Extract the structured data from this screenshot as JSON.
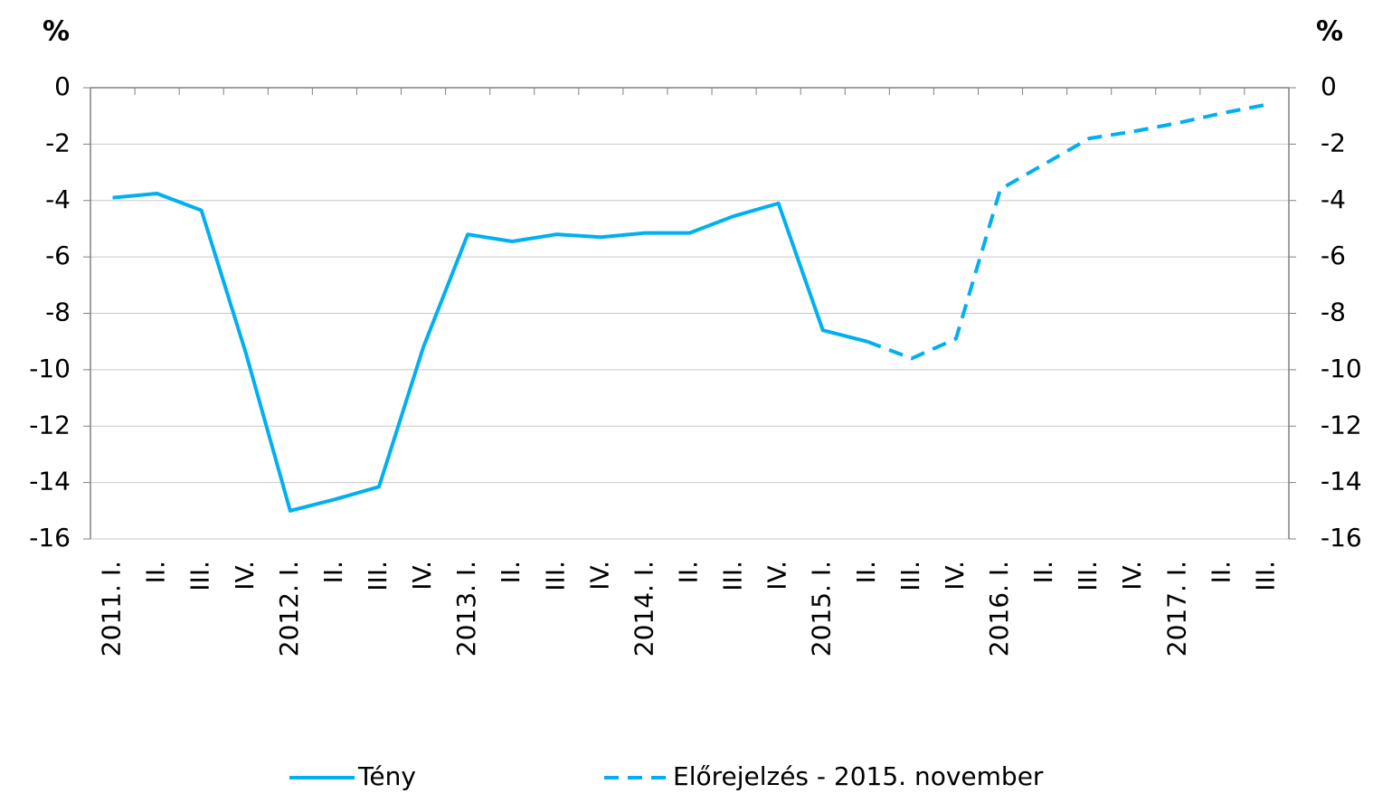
{
  "chart_data": {
    "type": "line",
    "y_label": "%",
    "y2_label": "%",
    "categories": [
      "2011. I.",
      "II.",
      "III.",
      "IV.",
      "2012. I.",
      "II.",
      "III.",
      "IV.",
      "2013. I.",
      "II.",
      "III.",
      "IV.",
      "2014. I.",
      "II.",
      "III.",
      "IV.",
      "2015. I.",
      "II.",
      "III.",
      "IV.",
      "2016. I.",
      "II.",
      "III.",
      "IV.",
      "2017. I.",
      "II.",
      "III."
    ],
    "series": [
      {
        "name": "Tény",
        "color": "#00b0f0",
        "dash": false,
        "values": [
          -3.9,
          -3.75,
          -4.35,
          -9.4,
          -15.0,
          -14.6,
          -14.15,
          -9.2,
          -5.2,
          -5.45,
          -5.2,
          -5.3,
          -5.15,
          -5.15,
          -4.55,
          -4.1,
          -8.6,
          -9.0,
          null,
          null,
          null,
          null,
          null,
          null,
          null,
          null,
          null
        ]
      },
      {
        "name": "Előrejelzés - 2015. november",
        "color": "#00b0f0",
        "dash": true,
        "values": [
          null,
          null,
          null,
          null,
          null,
          null,
          null,
          null,
          null,
          null,
          null,
          null,
          null,
          null,
          null,
          null,
          null,
          -9.0,
          -9.6,
          -8.9,
          -3.6,
          -2.7,
          -1.8,
          -1.55,
          -1.25,
          -0.9,
          -0.6
        ]
      }
    ],
    "ylim": [
      -16,
      0
    ],
    "yticks": [
      0,
      -2,
      -4,
      -6,
      -8,
      -10,
      -12,
      -14,
      -16
    ],
    "y2lim": [
      -16,
      0
    ],
    "y2ticks": [
      0,
      -2,
      -4,
      -6,
      -8,
      -10,
      -12,
      -14,
      -16
    ],
    "grid": true,
    "legend": "bottom"
  }
}
